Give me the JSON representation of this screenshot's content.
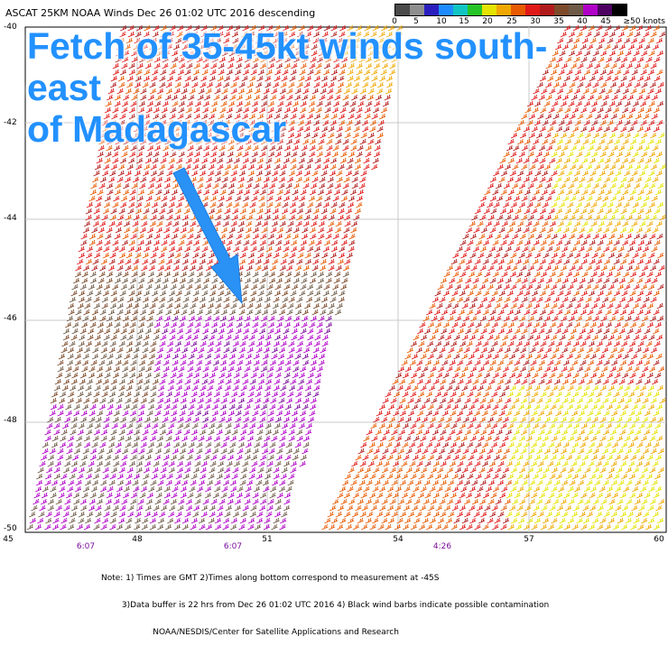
{
  "header": "ASCAT 25KM NOAA Winds   Dec 26 01:02 UTC 2016 descending",
  "legend": {
    "ticks": [
      "0",
      "5",
      "10",
      "15",
      "20",
      "25",
      "30",
      "35",
      "40",
      "45",
      "≥50 knots"
    ],
    "colors": [
      "#4a4a4a",
      "#8e8e8e",
      "#2a1fbe",
      "#1e8cff",
      "#11c4c4",
      "#26c426",
      "#e4e400",
      "#f0a800",
      "#e85a00",
      "#e01818",
      "#b11b1b",
      "#7d4a2a",
      "#6e5a46",
      "#b000c8",
      "#4d0062",
      "#000000"
    ]
  },
  "callout": {
    "line1": "Fetch of 35-45kt winds south-east",
    "line2": "of Madagascar",
    "color": "#2291ff"
  },
  "axes": {
    "lat_labels": [
      "-40",
      "-42",
      "-44",
      "-46",
      "-48",
      "-50"
    ],
    "lon_labels": [
      "45",
      "48",
      "51",
      "54",
      "57",
      "60"
    ],
    "time_labels": [
      "6:07",
      "6:07",
      "4:26"
    ]
  },
  "notes": [
    "Note: 1) Times are GMT 2)Times along bottom correspond to measurement at -45S",
    "        3)Data buffer is 22 hrs from Dec 26 01:02 UTC 2016 4) Black wind barbs indicate possible contamination",
    "                    NOAA/NESDIS/Center for Satellite Applications and Research"
  ]
}
